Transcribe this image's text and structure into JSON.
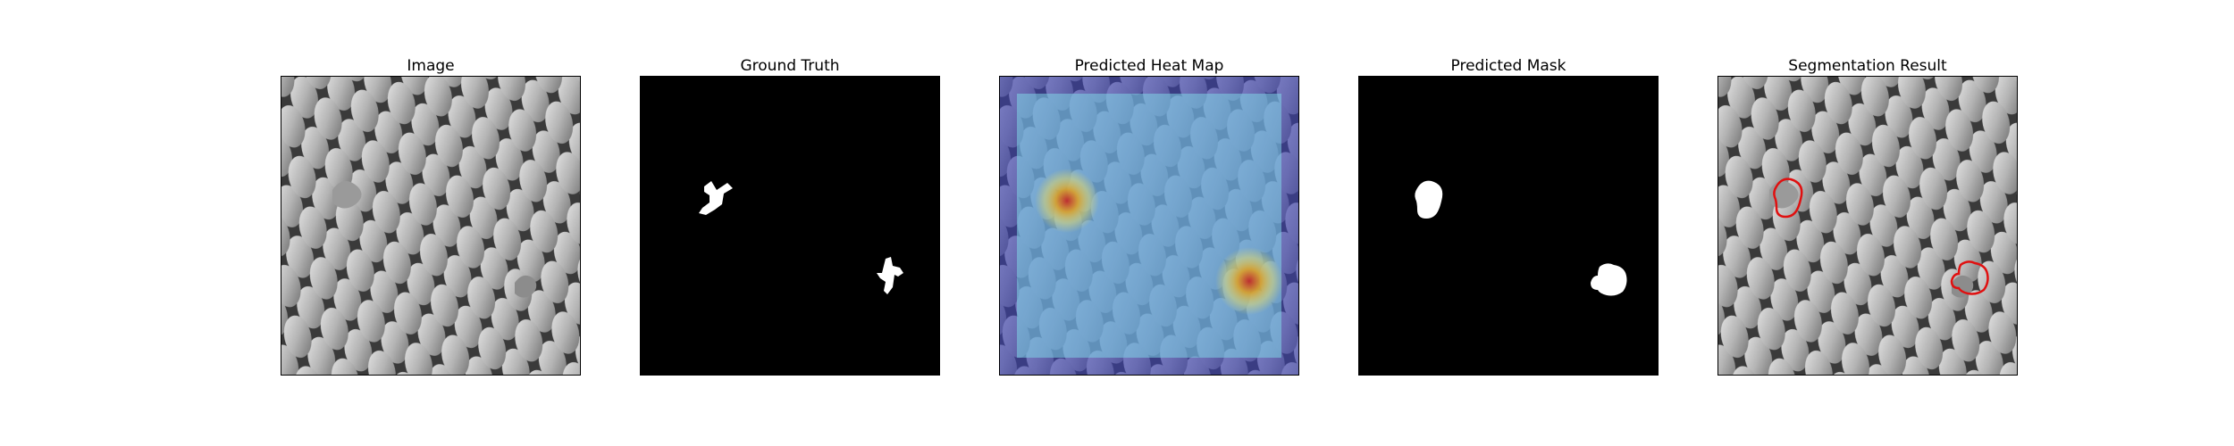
{
  "figure": {
    "panels": [
      {
        "title": "Image"
      },
      {
        "title": "Ground Truth"
      },
      {
        "title": "Predicted Heat Map"
      },
      {
        "title": "Predicted Mask"
      },
      {
        "title": "Segmentation Result"
      }
    ],
    "colors": {
      "background": "#ffffff",
      "frame": "#000000",
      "texture_dark": "#3a3a3a",
      "texture_light": "#c8c8c8",
      "mask": "#ffffff",
      "heatmap_low": "#3a3fb0",
      "heatmap_mid": "#7fd6e6",
      "heatmap_high": "#c0282a",
      "contour": "#e01010"
    }
  }
}
